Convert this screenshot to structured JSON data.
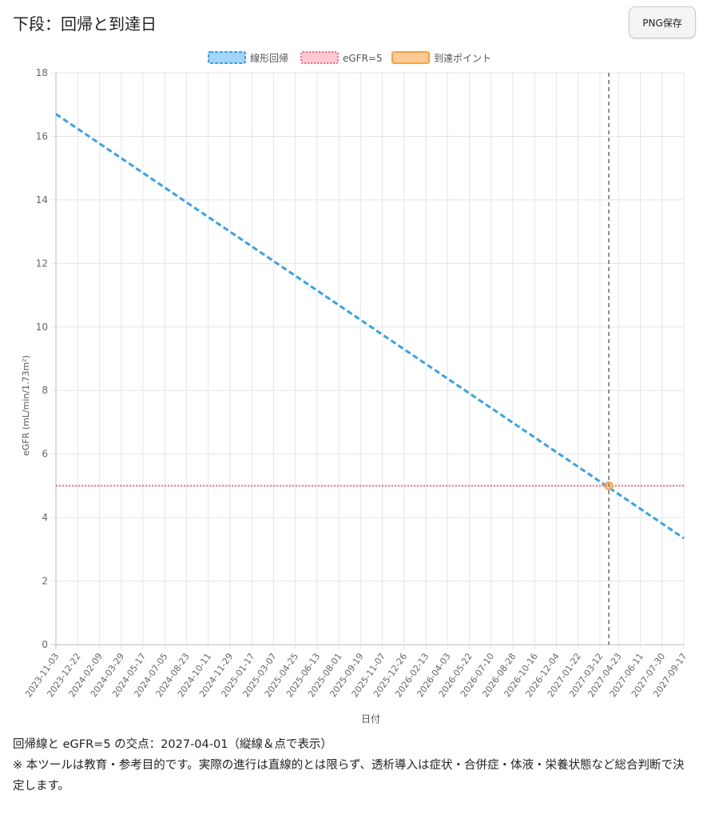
{
  "header": {
    "title": "下段：回帰と到達日",
    "png_button_label": "PNG保存"
  },
  "chart_data": {
    "type": "line",
    "legend": [
      "線形回帰",
      "eGFR=5",
      "到達ポイント"
    ],
    "legend_position": "top",
    "xlabel": "日付",
    "ylabel": "eGFR (mL/min/1.73m²)",
    "ylim": [
      0,
      18
    ],
    "yticks": [
      0,
      2,
      4,
      6,
      8,
      10,
      12,
      14,
      16,
      18
    ],
    "xlim": [
      "2023-11-03",
      "2027-09-17"
    ],
    "xticks": [
      "2023-11-03",
      "2023-12-22",
      "2024-02-09",
      "2024-03-29",
      "2024-05-17",
      "2024-07-05",
      "2024-08-23",
      "2024-10-11",
      "2024-11-29",
      "2025-01-17",
      "2025-03-07",
      "2025-04-25",
      "2025-06-13",
      "2025-08-01",
      "2025-09-19",
      "2025-11-07",
      "2025-12-26",
      "2026-02-13",
      "2026-04-03",
      "2026-05-22",
      "2026-07-10",
      "2026-08-28",
      "2026-10-16",
      "2026-12-04",
      "2027-01-22",
      "2027-03-12",
      "2027-04-23",
      "2027-06-11",
      "2027-07-30",
      "2027-09-17"
    ],
    "grid": true,
    "series": [
      {
        "name": "線形回帰",
        "style": "dashed",
        "color": "#36a2eb",
        "x": [
          "2023-11-03",
          "2027-09-17"
        ],
        "y": [
          16.7,
          3.35
        ]
      },
      {
        "name": "eGFR=5",
        "style": "dotted",
        "color": "#ff6384",
        "y_constant": 5
      },
      {
        "name": "到達ポイント",
        "style": "point",
        "color": "#ff9f40",
        "x": [
          "2027-04-01"
        ],
        "y": [
          5
        ]
      }
    ],
    "vertical_marker": {
      "x": "2027-04-01",
      "style": "dashed",
      "color": "#444444"
    }
  },
  "notes": {
    "intersection": "回帰線と eGFR=5 の交点：2027-04-01（縦線＆点で表示）",
    "disclaimer": "※ 本ツールは教育・参考目的です。実際の進行は直線的とは限らず、透析導入は症状・合併症・体液・栄養状態など総合判断で決定します。"
  }
}
